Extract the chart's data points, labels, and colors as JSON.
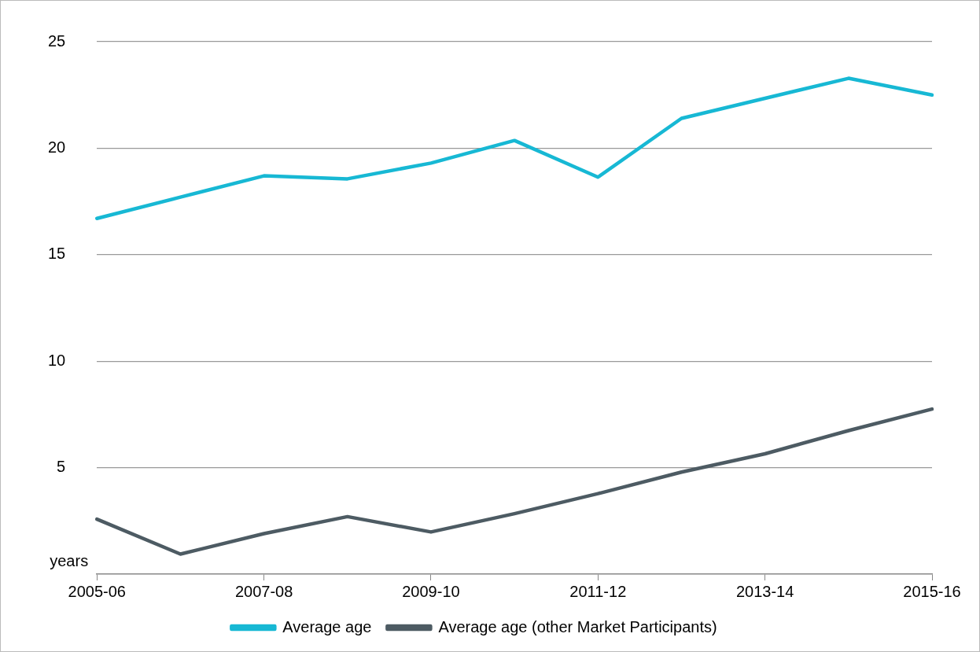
{
  "chart_data": {
    "type": "line",
    "ylabel": "years",
    "categories": [
      "2005-06",
      null,
      "2007-08",
      null,
      "2009-10",
      null,
      "2011-12",
      null,
      "2013-14",
      null,
      "2015-16"
    ],
    "series": [
      {
        "name": "Average age",
        "color": "#17b8d4",
        "values": [
          16.7,
          17.7,
          18.7,
          18.56,
          19.3,
          20.36,
          18.64,
          21.4,
          22.34,
          23.28,
          22.5
        ]
      },
      {
        "name": "Average age (other Market Participants)",
        "color": "#4d5b63",
        "values": [
          2.58,
          0.94,
          1.9,
          2.7,
          1.98,
          2.84,
          3.78,
          4.79,
          5.65,
          6.74,
          7.75
        ]
      }
    ],
    "ylim": [
      0,
      25
    ],
    "yticks": [
      5,
      10,
      15,
      20,
      25
    ],
    "grid": "y",
    "legend": "bottom",
    "marker": "none",
    "line_style": "solid"
  }
}
